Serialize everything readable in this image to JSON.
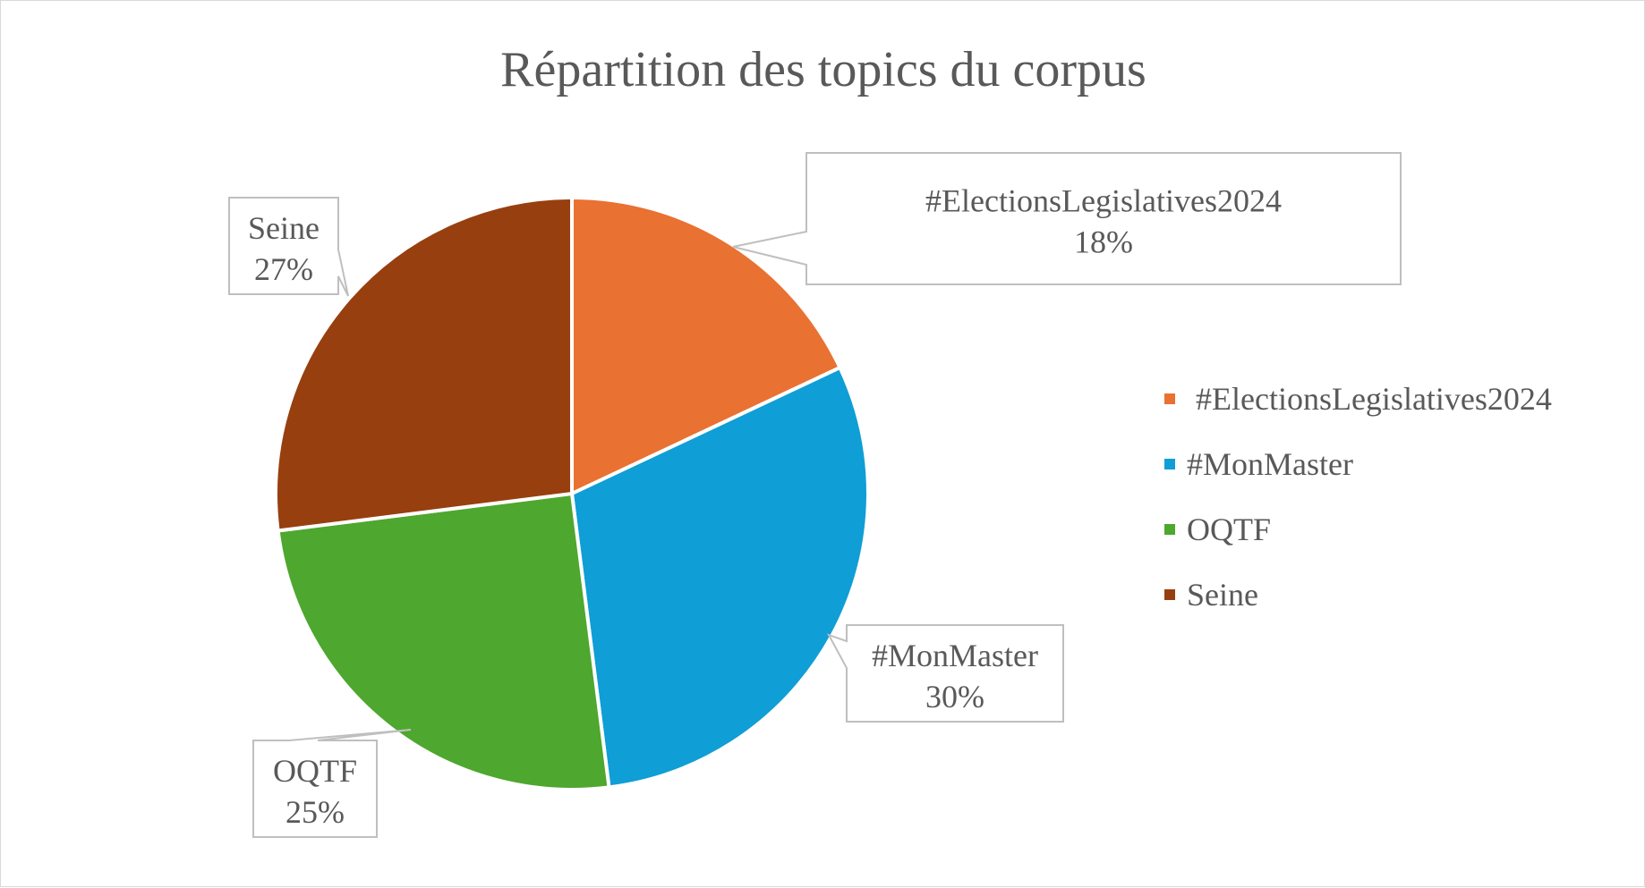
{
  "chart_data": {
    "type": "pie",
    "title": "Répartition des topics du corpus",
    "categories": [
      "#ElectionsLegislatives2024",
      "#MonMaster",
      "OQTF",
      "Seine"
    ],
    "values": [
      18,
      30,
      25,
      27
    ],
    "value_labels": [
      "18%",
      "30%",
      "25%",
      "27%"
    ],
    "colors": [
      "#E97132",
      "#0F9ED5",
      "#4EA72E",
      "#983F0F"
    ],
    "legend_position": "right",
    "start_angle_deg": 0,
    "direction": "clockwise"
  }
}
